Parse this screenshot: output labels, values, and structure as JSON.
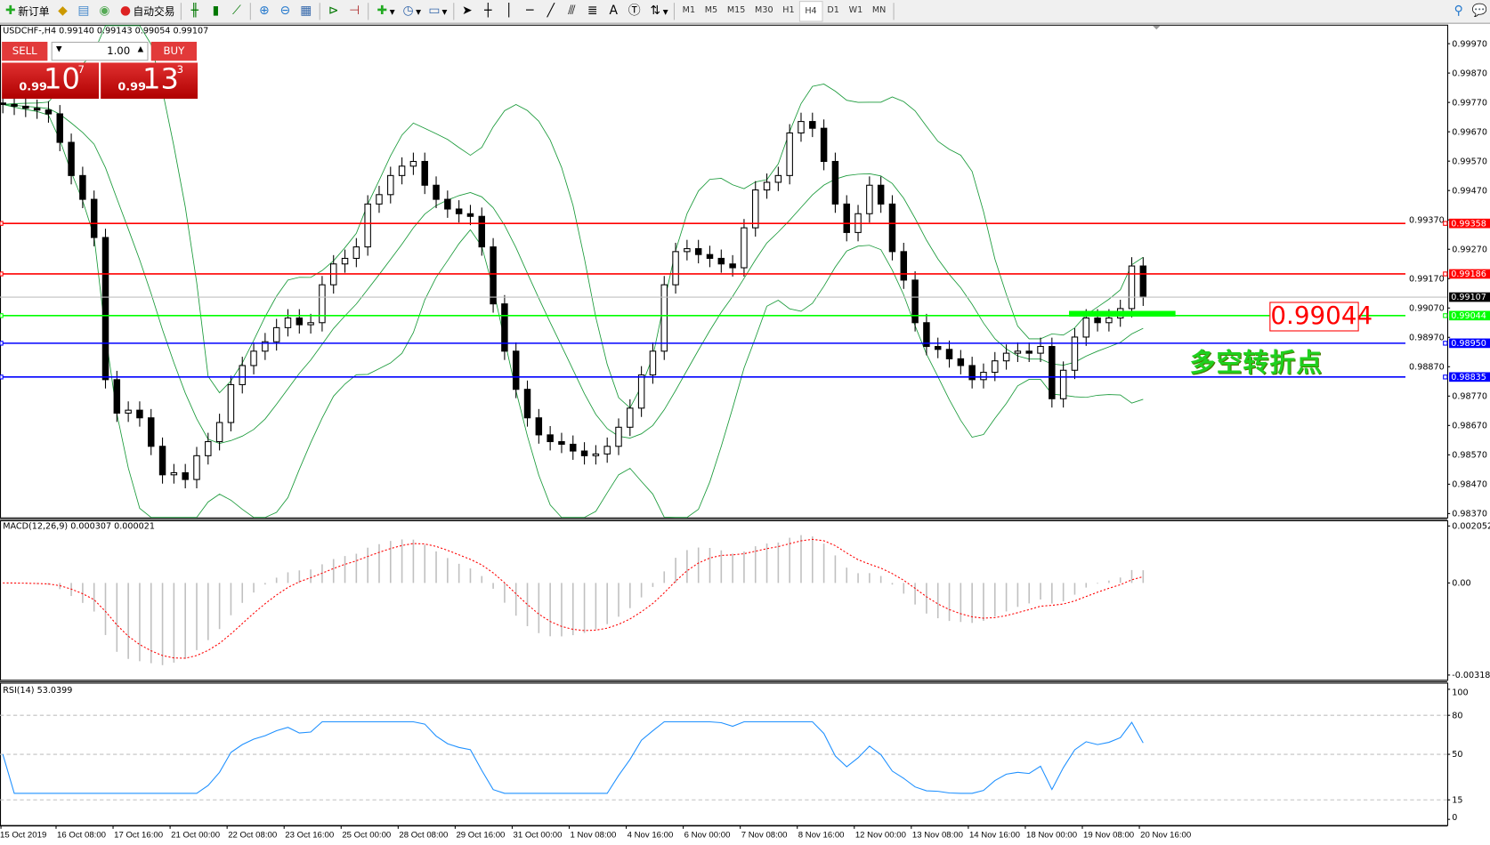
{
  "toolbar": {
    "new_order": "新订单",
    "auto_trading": "自动交易",
    "icons": [
      "new-order-icon",
      "navigator-icon",
      "history-icon",
      "signals-icon",
      "auto-trading-icon",
      "bar-chart-icon",
      "candlestick-icon",
      "line-chart-icon",
      "zoom-in-icon",
      "zoom-out-icon",
      "tile-icon",
      "auto-scroll-icon",
      "chart-shift-icon",
      "indicators-icon",
      "periods-icon",
      "templates-icon",
      "cursor-icon",
      "crosshair-icon",
      "vertical-line-icon",
      "horizontal-line-icon",
      "trendline-icon",
      "fibonacci-icon",
      "fibo-fan-icon",
      "text-icon",
      "text-label-icon",
      "arrows-icon"
    ],
    "timeframes": [
      "M1",
      "M5",
      "M15",
      "M30",
      "H1",
      "H4",
      "D1",
      "W1",
      "MN"
    ],
    "active_timeframe": "H4"
  },
  "chart": {
    "header": "USDCHF-,H4  0.99140 0.99143 0.99054 0.99107",
    "trade_panel": {
      "sell": "SELL",
      "buy": "BUY",
      "lots": "1.00",
      "sell_small": "0.99",
      "sell_big": "10",
      "sell_tiny": "7",
      "buy_small": "0.99",
      "buy_big": "13",
      "buy_tiny": "3"
    },
    "price_labels": [
      "0.99970",
      "0.99870",
      "0.99770",
      "0.99670",
      "0.99570",
      "0.99470",
      "0.99370",
      "0.99270",
      "0.99170",
      "0.99070",
      "0.98970",
      "0.98870",
      "0.98770",
      "0.98670",
      "0.98570",
      "0.98470",
      "0.98370"
    ],
    "current_price": "0.99107",
    "levels": [
      {
        "price": "0.99358",
        "color": "#ff0000"
      },
      {
        "price": "0.99186",
        "color": "#ff0000"
      },
      {
        "price": "0.99044",
        "color": "#00ff00"
      },
      {
        "price": "0.98950",
        "color": "#0000ff"
      },
      {
        "price": "0.98835",
        "color": "#0000ff"
      }
    ],
    "annotation_price": "0.99044",
    "annotation_text": "多空转折点"
  },
  "macd": {
    "label": "MACD(12,26,9) 0.000307 0.000021",
    "axis": [
      "0.002052",
      "0.00",
      "-0.003187"
    ]
  },
  "rsi": {
    "label": "RSI(14) 53.0399",
    "axis": [
      "100",
      "80",
      "50",
      "15",
      "0"
    ]
  },
  "dates": [
    "15 Oct 2019",
    "16 Oct 08:00",
    "17 Oct 16:00",
    "21 Oct 00:00",
    "22 Oct 08:00",
    "23 Oct 16:00",
    "25 Oct 00:00",
    "28 Oct 08:00",
    "29 Oct 16:00",
    "31 Oct 00:00",
    "1 Nov 08:00",
    "4 Nov 16:00",
    "6 Nov 00:00",
    "7 Nov 08:00",
    "8 Nov 16:00",
    "12 Nov 00:00",
    "13 Nov 08:00",
    "14 Nov 16:00",
    "18 Nov 00:00",
    "19 Nov 08:00",
    "20 Nov 16:00"
  ],
  "chart_data": {
    "type": "candlestick",
    "symbol": "USDCHF-",
    "timeframe": "H4",
    "ylim": [
      0.9837,
      1.0002
    ],
    "closes": [
      0.99763,
      0.99757,
      0.9975,
      0.99744,
      0.99731,
      0.99634,
      0.99521,
      0.9944,
      0.9931,
      0.98826,
      0.98712,
      0.98722,
      0.98696,
      0.98599,
      0.98502,
      0.98509,
      0.98486,
      0.98567,
      0.98615,
      0.9868,
      0.98809,
      0.98874,
      0.98923,
      0.98955,
      0.99003,
      0.99036,
      0.99013,
      0.9902,
      0.99149,
      0.9922,
      0.99239,
      0.99278,
      0.99424,
      0.99456,
      0.99521,
      0.99553,
      0.99569,
      0.99488,
      0.9944,
      0.99407,
      0.99391,
      0.99382,
      0.99278,
      0.99084,
      0.98923,
      0.98793,
      0.98696,
      0.98638,
      0.98615,
      0.98606,
      0.98583,
      0.98567,
      0.98573,
      0.98599,
      0.98664,
      0.98729,
      0.98842,
      0.98923,
      0.99149,
      0.99262,
      0.99272,
      0.99252,
      0.99239,
      0.9922,
      0.99207,
      0.99343,
      0.99472,
      0.99498,
      0.99521,
      0.99666,
      0.99705,
      0.99682,
      0.99569,
      0.99424,
      0.99327,
      0.99391,
      0.99488,
      0.99424,
      0.99262,
      0.99165,
      0.9902,
      0.98939,
      0.98929,
      0.98897,
      0.98874,
      0.98826,
      0.98851,
      0.9889,
      0.98916,
      0.98923,
      0.98916,
      0.98939,
      0.98761,
      0.98858,
      0.98971,
      0.99036,
      0.9902,
      0.99036,
      0.99068,
      0.99213,
      0.99107
    ],
    "overlays": [
      "bollinger-bands"
    ],
    "macd": {
      "ylim": [
        -0.003187,
        0.002052
      ]
    },
    "rsi": {
      "ylim": [
        0,
        100
      ],
      "levels": [
        80,
        50,
        15
      ]
    },
    "colors": {
      "candle": "#000000",
      "bands": "#1a9a3a",
      "macd_hist": "#c0c0c0",
      "macd_signal": "#ff0000",
      "rsi": "#1e90ff"
    }
  }
}
